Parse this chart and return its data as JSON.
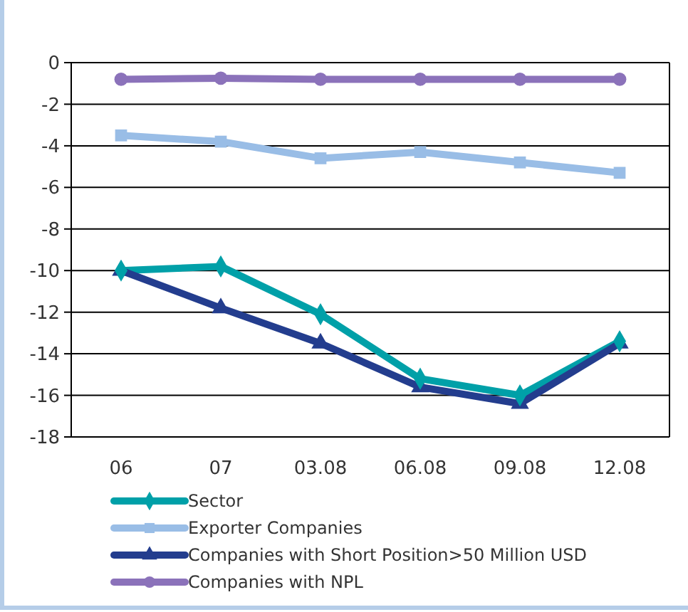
{
  "chart_data": {
    "type": "line",
    "categories": [
      "06",
      "07",
      "03.08",
      "06.08",
      "09.08",
      "12.08"
    ],
    "series": [
      {
        "name": "Sector",
        "color": "#00a0a8",
        "marker": "diamond",
        "values": [
          -10,
          -9.8,
          -12.1,
          -15.2,
          -16.0,
          -13.4
        ]
      },
      {
        "name": "Exporter Companies",
        "color": "#99bde6",
        "marker": "square",
        "values": [
          -3.5,
          -3.8,
          -4.6,
          -4.3,
          -4.8,
          -5.3
        ]
      },
      {
        "name": "Companies with Short Position>50 Million USD",
        "color": "#233d8e",
        "marker": "triangle",
        "values": [
          -10,
          -11.8,
          -13.5,
          -15.6,
          -16.4,
          -13.5
        ]
      },
      {
        "name": "Companies with NPL",
        "color": "#8b72ba",
        "marker": "circle",
        "values": [
          -0.8,
          -0.75,
          -0.8,
          -0.8,
          -0.8,
          -0.8
        ]
      }
    ],
    "ylim": [
      -18,
      0
    ],
    "yticks": [
      0,
      -2,
      -4,
      -6,
      -8,
      -10,
      -12,
      -14,
      -16,
      -18
    ],
    "grid": "y",
    "legend": "bottom",
    "line_style": "solid"
  }
}
